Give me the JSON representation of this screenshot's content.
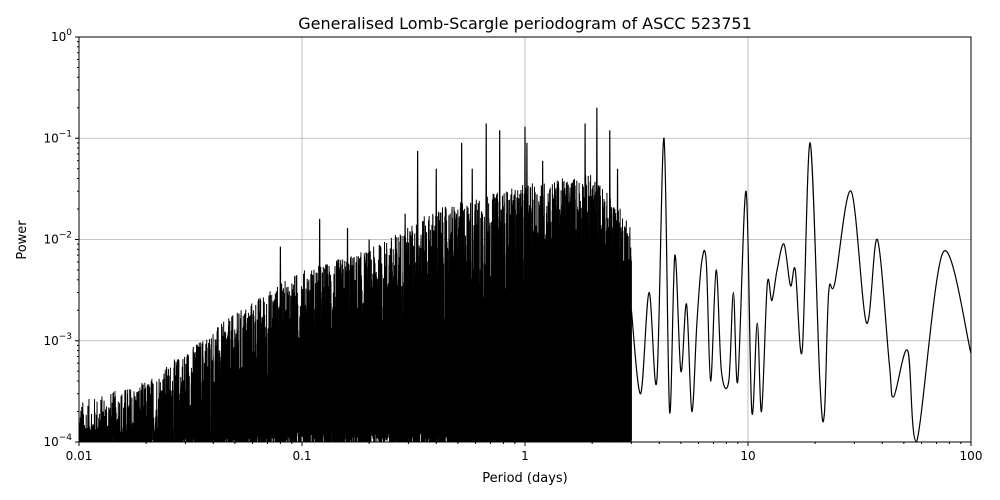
{
  "chart_data": {
    "type": "line",
    "title": "Generalised Lomb-Scargle periodogram of ASCC 523751",
    "xlabel": "Period (days)",
    "ylabel": "Power",
    "xscale": "log",
    "yscale": "log",
    "xlim": [
      0.01,
      100
    ],
    "ylim": [
      0.0001,
      1
    ],
    "grid": true,
    "xticks": [
      {
        "v": 0.01,
        "label": "0.01"
      },
      {
        "v": 0.1,
        "label": "0.1"
      },
      {
        "v": 1,
        "label": "1"
      },
      {
        "v": 10,
        "label": "10"
      },
      {
        "v": 100,
        "label": "100"
      }
    ],
    "yticks": [
      {
        "v": 0.0001,
        "base": "10",
        "exp": "−4"
      },
      {
        "v": 0.001,
        "base": "10",
        "exp": "−3"
      },
      {
        "v": 0.01,
        "base": "10",
        "exp": "−2"
      },
      {
        "v": 0.1,
        "base": "10",
        "exp": "−1"
      },
      {
        "v": 1,
        "base": "10",
        "exp": "0"
      }
    ],
    "series": [
      {
        "name": "power",
        "color": "#000000",
        "dense_envelope": [
          [
            0.01,
            0.00025
          ],
          [
            0.02,
            0.0004
          ],
          [
            0.04,
            0.0013
          ],
          [
            0.06,
            0.0025
          ],
          [
            0.1,
            0.005
          ],
          [
            0.2,
            0.008
          ],
          [
            0.4,
            0.02
          ],
          [
            1,
            0.035
          ],
          [
            2,
            0.045
          ],
          [
            3,
            0.015
          ]
        ],
        "dense_peaks": [
          [
            0.08,
            0.0085
          ],
          [
            0.12,
            0.016
          ],
          [
            0.16,
            0.013
          ],
          [
            0.2,
            0.01
          ],
          [
            0.29,
            0.018
          ],
          [
            0.33,
            0.075
          ],
          [
            0.4,
            0.05
          ],
          [
            0.52,
            0.09
          ],
          [
            0.58,
            0.05
          ],
          [
            0.67,
            0.14
          ],
          [
            0.77,
            0.12
          ],
          [
            1.0,
            0.13
          ],
          [
            1.02,
            0.09
          ],
          [
            1.2,
            0.06
          ],
          [
            1.4,
            0.035
          ],
          [
            1.86,
            0.14
          ],
          [
            2.1,
            0.2
          ],
          [
            2.4,
            0.12
          ],
          [
            2.6,
            0.05
          ]
        ],
        "smooth_points": [
          [
            3.0,
            0.002
          ],
          [
            3.3,
            0.0003
          ],
          [
            3.6,
            0.003
          ],
          [
            3.9,
            0.0004
          ],
          [
            4.2,
            0.1
          ],
          [
            4.45,
            0.0002
          ],
          [
            4.7,
            0.007
          ],
          [
            5.0,
            0.0005
          ],
          [
            5.3,
            0.0023
          ],
          [
            5.6,
            0.0002
          ],
          [
            5.9,
            0.0015
          ],
          [
            6.2,
            0.006
          ],
          [
            6.5,
            0.006
          ],
          [
            6.8,
            0.0004
          ],
          [
            7.2,
            0.005
          ],
          [
            7.6,
            0.0005
          ],
          [
            8.2,
            0.0004
          ],
          [
            8.6,
            0.003
          ],
          [
            9.0,
            0.0004
          ],
          [
            9.8,
            0.03
          ],
          [
            10.4,
            0.0002
          ],
          [
            11.0,
            0.0015
          ],
          [
            11.5,
            0.0002
          ],
          [
            12.2,
            0.0036
          ],
          [
            12.8,
            0.0025
          ],
          [
            13.5,
            0.005
          ],
          [
            14.5,
            0.009
          ],
          [
            15.5,
            0.0035
          ],
          [
            16.3,
            0.005
          ],
          [
            17.5,
            0.0008
          ],
          [
            19,
            0.09
          ],
          [
            21,
            0.0004
          ],
          [
            22,
            0.00019
          ],
          [
            23,
            0.003
          ],
          [
            24.5,
            0.0037
          ],
          [
            29,
            0.03
          ],
          [
            34,
            0.0015
          ],
          [
            38,
            0.01
          ],
          [
            43,
            0.0006
          ],
          [
            45,
            0.00028
          ],
          [
            52,
            0.0008
          ],
          [
            57,
            0.0001
          ],
          [
            75,
            0.0075
          ],
          [
            100,
            0.00075
          ]
        ]
      }
    ]
  }
}
